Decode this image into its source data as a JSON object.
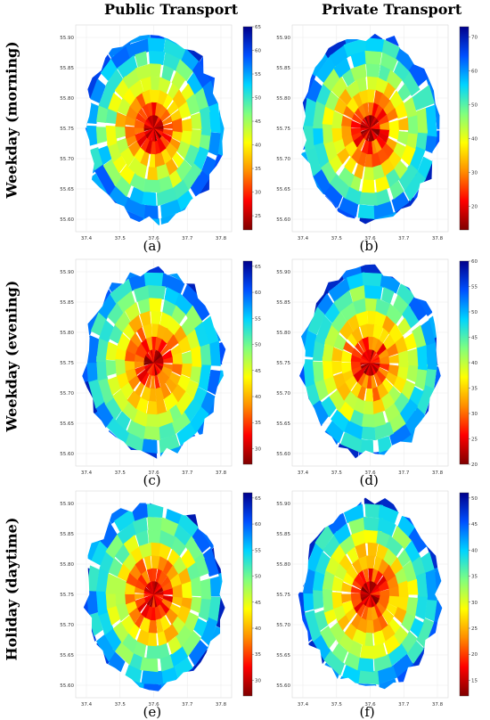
{
  "columns": [
    "Public Transport",
    "Private Transport"
  ],
  "rows": [
    "Weekday (morning)",
    "Weekday (evening)",
    "Holiday (daytime)"
  ],
  "colors": {
    "colormap": [
      "#7f0000",
      "#ff0000",
      "#ff8c00",
      "#ffff00",
      "#7fff7f",
      "#00d4ff",
      "#0050ff",
      "#00008b"
    ]
  },
  "panels": [
    {
      "caption": "(a)",
      "transport": "Public Transport",
      "period": "Weekday (morning)",
      "xticks": [
        "37.4",
        "37.5",
        "37.6",
        "37.7",
        "37.8"
      ],
      "yticks": [
        "55.90",
        "55.85",
        "55.80",
        "55.75",
        "55.70",
        "55.65",
        "55.60"
      ],
      "colorbar": {
        "min": 22,
        "max": 65,
        "ticks": [
          "65",
          "60",
          "55",
          "50",
          "45",
          "40",
          "35",
          "30",
          "25"
        ]
      }
    },
    {
      "caption": "(b)",
      "transport": "Private Transport",
      "period": "Weekday (morning)",
      "xticks": [
        "37.4",
        "37.5",
        "37.6",
        "37.7",
        "37.8"
      ],
      "yticks": [
        "55.90",
        "55.85",
        "55.80",
        "55.75",
        "55.70",
        "55.65",
        "55.60"
      ],
      "colorbar": {
        "min": 13,
        "max": 73,
        "ticks": [
          "70",
          "60",
          "50",
          "40",
          "30",
          "20"
        ]
      }
    },
    {
      "caption": "(c)",
      "transport": "Public Transport",
      "period": "Weekday (evening)",
      "xticks": [
        "37.4",
        "37.5",
        "37.6",
        "37.7",
        "37.8"
      ],
      "yticks": [
        "55.90",
        "55.85",
        "55.80",
        "55.75",
        "55.70",
        "55.65",
        "55.60"
      ],
      "colorbar": {
        "min": 27,
        "max": 66,
        "ticks": [
          "65",
          "60",
          "55",
          "50",
          "45",
          "40",
          "35",
          "30"
        ]
      }
    },
    {
      "caption": "(d)",
      "transport": "Private Transport",
      "period": "Weekday (evening)",
      "xticks": [
        "37.4",
        "37.5",
        "37.6",
        "37.7",
        "37.8"
      ],
      "yticks": [
        "55.90",
        "55.85",
        "55.80",
        "55.75",
        "55.70",
        "55.65",
        "55.60"
      ],
      "colorbar": {
        "min": 20,
        "max": 60,
        "ticks": [
          "60",
          "55",
          "50",
          "45",
          "40",
          "35",
          "30",
          "25",
          "20"
        ]
      }
    },
    {
      "caption": "(e)",
      "transport": "Public Transport",
      "period": "Holiday (daytime)",
      "xticks": [
        "37.4",
        "37.5",
        "37.6",
        "37.7",
        "37.8"
      ],
      "yticks": [
        "55.90",
        "55.85",
        "55.80",
        "55.75",
        "55.70",
        "55.65",
        "55.60"
      ],
      "colorbar": {
        "min": 27,
        "max": 66,
        "ticks": [
          "65",
          "60",
          "55",
          "50",
          "45",
          "40",
          "35",
          "30"
        ]
      }
    },
    {
      "caption": "(f)",
      "transport": "Private Transport",
      "period": "Holiday (daytime)",
      "xticks": [
        "37.4",
        "37.5",
        "37.6",
        "37.7",
        "37.8"
      ],
      "yticks": [
        "55.90",
        "55.85",
        "55.80",
        "55.75",
        "55.70",
        "55.65",
        "55.60"
      ],
      "colorbar": {
        "min": 12,
        "max": 51,
        "ticks": [
          "50",
          "45",
          "40",
          "35",
          "30",
          "25",
          "20",
          "15"
        ]
      }
    }
  ]
}
